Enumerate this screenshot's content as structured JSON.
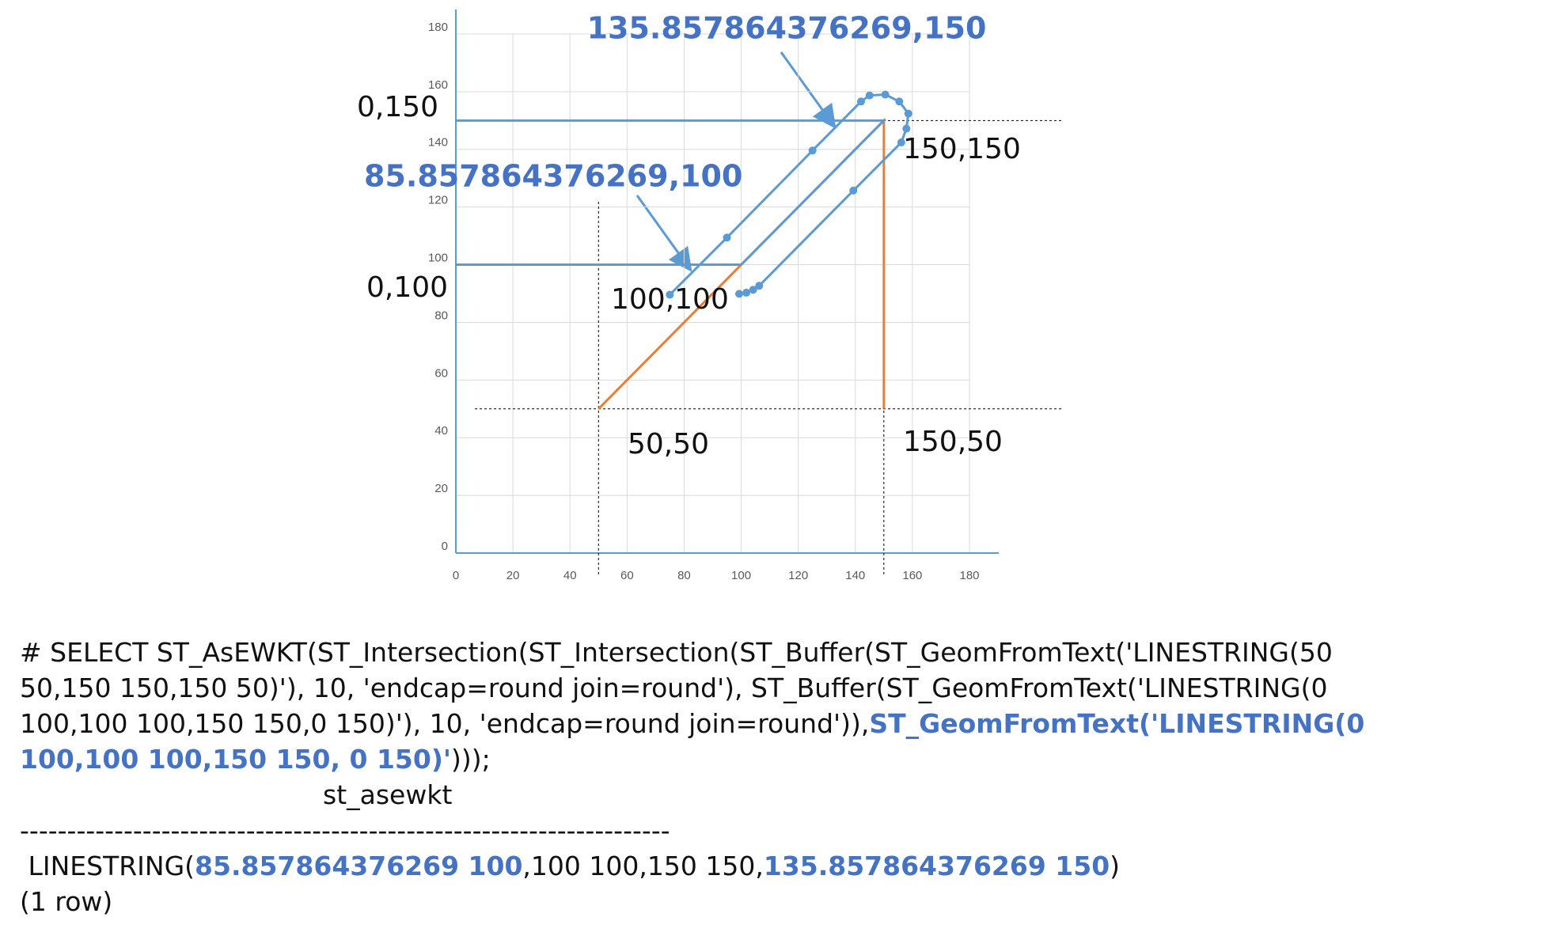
{
  "chart_data": {
    "type": "scatter",
    "xlim": [
      0,
      180
    ],
    "xticks": [
      0,
      20,
      40,
      60,
      80,
      100,
      120,
      140,
      160,
      180
    ],
    "ylim": [
      0,
      180
    ],
    "yticks": [
      0,
      20,
      40,
      60,
      80,
      100,
      120,
      140,
      160,
      180
    ],
    "grid": true,
    "series": [
      {
        "color": "#ed7d31",
        "x": [
          50,
          150,
          150
        ],
        "y": [
          50,
          150,
          50
        ],
        "markers": false
      },
      {
        "color": "#5b9bd5",
        "x": [
          0,
          100,
          150,
          0
        ],
        "y": [
          100,
          100,
          150,
          150
        ],
        "markers": false
      },
      {
        "color": "#5b9bd5",
        "x": [
          75,
          95,
          125,
          142,
          145,
          150.5,
          155.4,
          158.6,
          157.9,
          156.1,
          139.3,
          106.3,
          104.2,
          101.8,
          99.3
        ],
        "y": [
          89.6,
          109.4,
          139.6,
          156.6,
          158.7,
          159,
          156.6,
          152.4,
          147.2,
          142.4,
          125.7,
          92.7,
          91.3,
          90.3,
          89.9
        ],
        "markers": true
      }
    ],
    "annotations": [
      {
        "text": "135.857864376269,150",
        "highlight": true
      },
      {
        "text": "85.857864376269,100",
        "highlight": true
      },
      {
        "text": "0,150",
        "highlight": false
      },
      {
        "text": "0,100",
        "highlight": false
      },
      {
        "text": "150,150",
        "highlight": false
      },
      {
        "text": "100,100",
        "highlight": false
      },
      {
        "text": "50,50",
        "highlight": false
      },
      {
        "text": "150,50",
        "highlight": false
      }
    ]
  },
  "console": {
    "query_lines": [
      [
        {
          "text": "# SELECT ST_AsEWKT(ST_Intersection(ST_Intersection(ST_Buffer(ST_GeomFromText('LINESTRING(50",
          "highlight": false
        }
      ],
      [
        {
          "text": "50,150 150,150 50)'), 10, 'endcap=round join=round'), ST_Buffer(ST_GeomFromText('LINESTRING(0",
          "highlight": false
        }
      ],
      [
        {
          "text": "100,100 100,150 150,0 150)'), 10, 'endcap=round join=round')),",
          "highlight": false
        },
        {
          "text": "ST_GeomFromText('LINESTRING(0",
          "highlight": true
        }
      ],
      [
        {
          "text": "100,100 100,150 150, 0 150)'",
          "highlight": true
        },
        {
          "text": ")));",
          "highlight": false
        }
      ]
    ],
    "column_header": "st_asewkt",
    "separator": "---------------------------------------------------------------------",
    "result": [
      {
        "text": " LINESTRING(",
        "highlight": false
      },
      {
        "text": "85.857864376269 100",
        "highlight": true
      },
      {
        "text": ",100 100,150 150,",
        "highlight": false
      },
      {
        "text": "135.857864376269 150",
        "highlight": true
      },
      {
        "text": ")",
        "highlight": false
      }
    ],
    "row_count": "(1 row)"
  }
}
